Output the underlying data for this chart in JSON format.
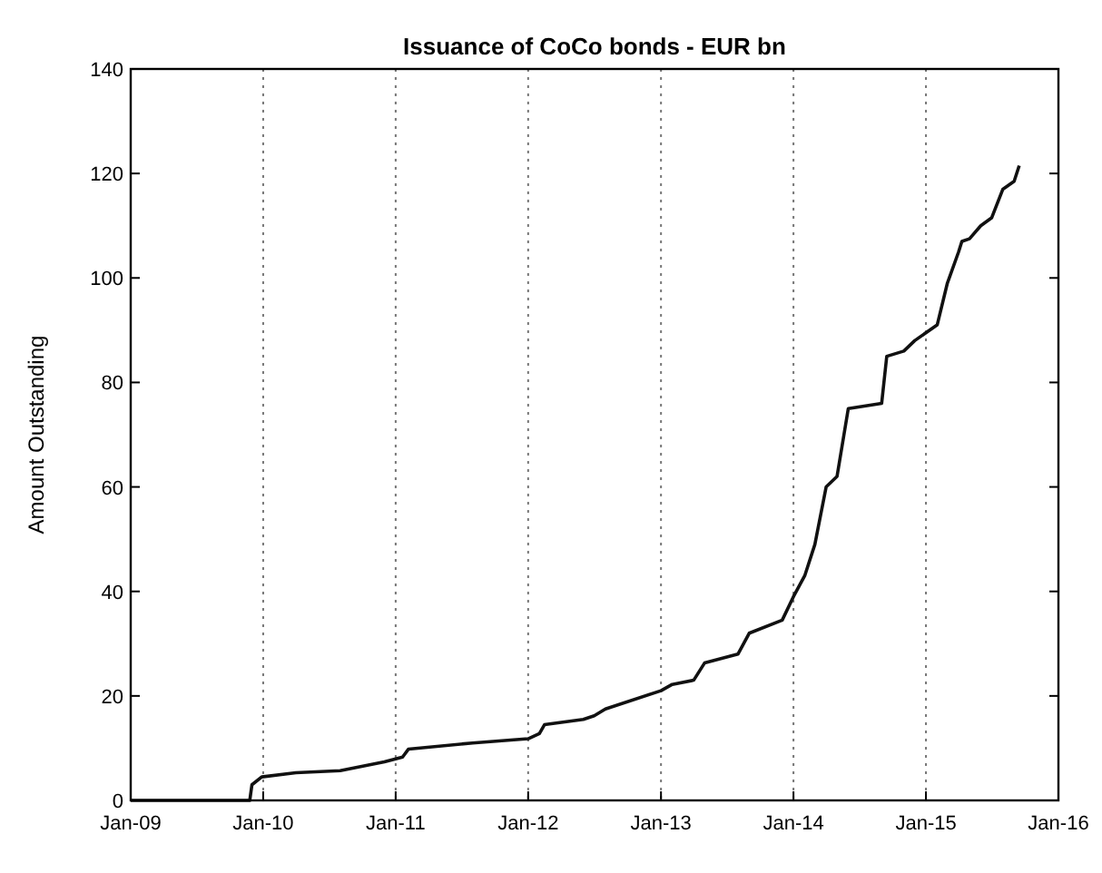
{
  "chart_data": {
    "type": "line",
    "title": "Issuance of CoCo bonds - EUR bn",
    "ylabel": "Amount Outstanding",
    "x": [
      "2009-01-01",
      "2009-06-01",
      "2009-11-25",
      "2009-12-01",
      "2009-12-28",
      "2010-04-01",
      "2010-08-01",
      "2010-12-01",
      "2011-01-20",
      "2011-02-05",
      "2011-08-01",
      "2012-01-01",
      "2012-02-01",
      "2012-02-15",
      "2012-06-01",
      "2012-07-01",
      "2012-08-01",
      "2013-01-01",
      "2013-02-01",
      "2013-04-01",
      "2013-05-01",
      "2013-08-01",
      "2013-09-01",
      "2013-12-01",
      "2014-01-01",
      "2014-02-01",
      "2014-03-01",
      "2014-04-01",
      "2014-05-01",
      "2014-06-01",
      "2014-09-01",
      "2014-09-15",
      "2014-11-01",
      "2014-12-01",
      "2015-02-01",
      "2015-03-01",
      "2015-04-01",
      "2015-04-10",
      "2015-05-01",
      "2015-06-01",
      "2015-07-01",
      "2015-08-01",
      "2015-09-01",
      "2015-09-15"
    ],
    "series": [
      {
        "color": "#111111",
        "values": [
          0,
          0,
          0,
          3,
          4.5,
          5.3,
          5.7,
          7.4,
          8.3,
          9.8,
          11,
          11.8,
          12.8,
          14.5,
          15.5,
          16.2,
          17.5,
          21,
          22.2,
          23,
          26.3,
          28,
          32,
          34.5,
          39,
          43,
          49,
          60,
          62,
          75,
          76,
          85,
          86,
          88,
          91,
          99,
          105,
          107,
          107.5,
          110,
          111.5,
          117,
          118.5,
          121.5
        ]
      }
    ],
    "xlim": [
      "2009-01-01",
      "2016-01-01"
    ],
    "xticks": [
      {
        "value": "2009-01-01",
        "label": "Jan-09"
      },
      {
        "value": "2010-01-01",
        "label": "Jan-10"
      },
      {
        "value": "2011-01-01",
        "label": "Jan-11"
      },
      {
        "value": "2012-01-01",
        "label": "Jan-12"
      },
      {
        "value": "2013-01-01",
        "label": "Jan-13"
      },
      {
        "value": "2014-01-01",
        "label": "Jan-14"
      },
      {
        "value": "2015-01-01",
        "label": "Jan-15"
      },
      {
        "value": "2016-01-01",
        "label": "Jan-16"
      }
    ],
    "ylim": [
      0,
      140
    ],
    "yticks": [
      0,
      20,
      40,
      60,
      80,
      100,
      120,
      140
    ],
    "grid": "x",
    "marker": "none",
    "line_style": "solid"
  }
}
